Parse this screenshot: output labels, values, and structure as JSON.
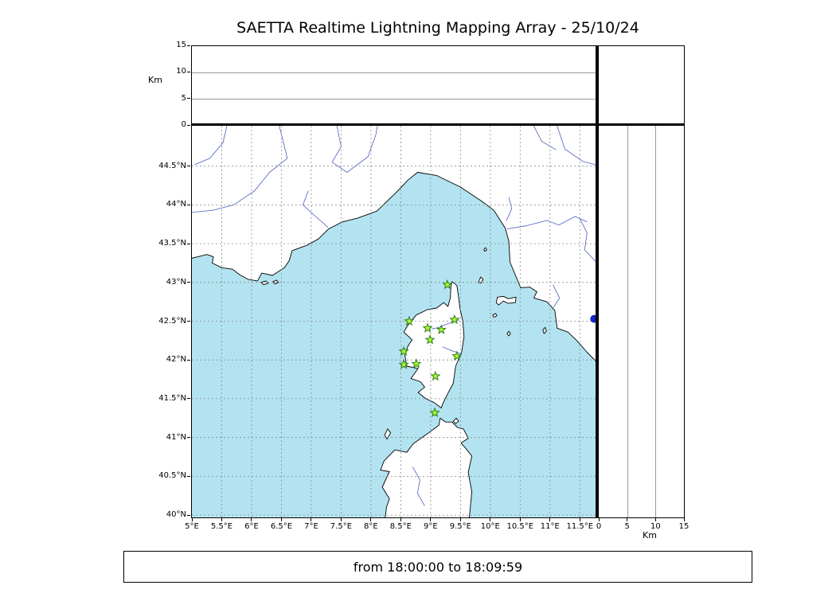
{
  "title": "SAETTA Realtime Lightning Mapping Array - 25/10/24",
  "footer": {
    "time_range": "from 18:00:00 to 18:09:59"
  },
  "colors": {
    "sea": "#b3e3f0",
    "land": "#ffffff",
    "coast": "#000000",
    "river": "#4a5fc1",
    "grid": "#8a8a8a",
    "station_fill": "#a8ff2f",
    "station_stroke": "#2f7d1e",
    "source_dot": "#1426cc"
  },
  "chart_data": {
    "type": "scatter",
    "title": "SAETTA Realtime Lightning Mapping Array - 25/10/24",
    "subtitle": "from 18:00:00 to 18:09:59",
    "map_panel": {
      "lon_range": [
        5.0,
        11.79
      ],
      "lat_range": [
        39.97,
        45.02
      ],
      "lon_ticks": [
        5,
        5.5,
        6,
        6.5,
        7,
        7.5,
        8,
        8.5,
        9,
        9.5,
        10,
        10.5,
        11,
        11.5
      ],
      "lon_tick_labels": [
        "5°E",
        "5.5°E",
        "6°E",
        "6.5°E",
        "7°E",
        "7.5°E",
        "8°E",
        "8.5°E",
        "9°E",
        "9.5°E",
        "10°E",
        "10.5°E",
        "11°E",
        "11.5°E"
      ],
      "lat_ticks": [
        40,
        40.5,
        41,
        41.5,
        42,
        42.5,
        43,
        43.5,
        44,
        44.5
      ],
      "lat_tick_labels": [
        "40°N",
        "40.5°N",
        "41°N",
        "41.5°N",
        "42°N",
        "42.5°N",
        "43°N",
        "43.5°N",
        "44°N",
        "44.5°N"
      ],
      "grid": true,
      "region": "Corsica and surrounding Mediterranean"
    },
    "altitude_axis": {
      "label": "Km",
      "range": [
        0,
        15
      ],
      "ticks": [
        0,
        5,
        10,
        15
      ],
      "tick_labels": [
        "0",
        "5",
        "10",
        "15"
      ],
      "gridlines_km": [
        5,
        10
      ]
    },
    "stations": [
      {
        "lon": 9.28,
        "lat": 42.97
      },
      {
        "lon": 8.64,
        "lat": 42.5
      },
      {
        "lon": 8.95,
        "lat": 42.41
      },
      {
        "lon": 9.4,
        "lat": 42.52
      },
      {
        "lon": 9.18,
        "lat": 42.39
      },
      {
        "lon": 8.99,
        "lat": 42.26
      },
      {
        "lon": 8.55,
        "lat": 42.11
      },
      {
        "lon": 9.44,
        "lat": 42.05
      },
      {
        "lon": 8.55,
        "lat": 41.94
      },
      {
        "lon": 8.76,
        "lat": 41.95
      },
      {
        "lon": 9.08,
        "lat": 41.79
      },
      {
        "lon": 9.07,
        "lat": 41.32
      }
    ],
    "vhf_sources": [
      {
        "lon": 11.74,
        "lat": 42.53,
        "alt_km": 0
      }
    ]
  }
}
